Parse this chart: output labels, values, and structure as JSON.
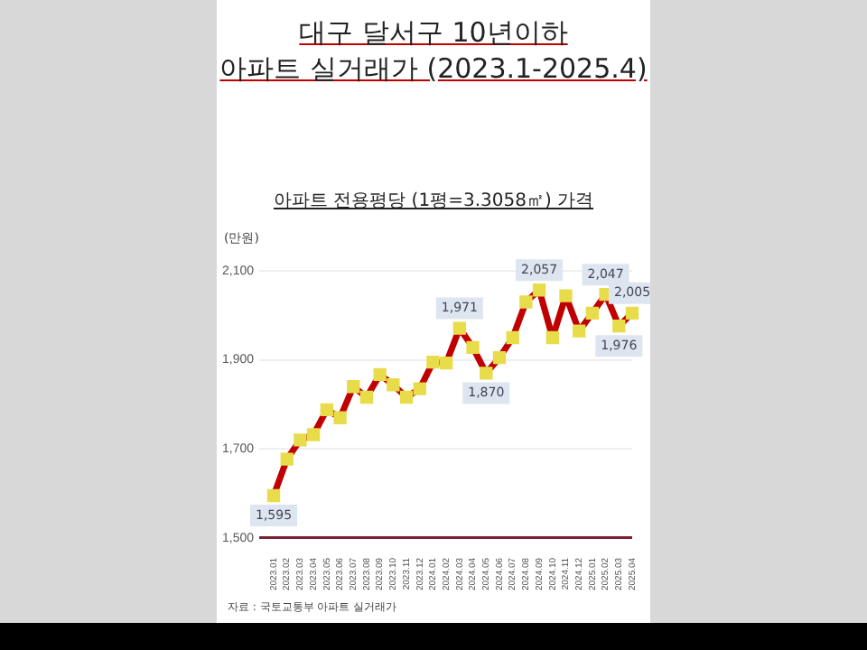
{
  "chart_data": {
    "type": "line",
    "title": "대구 달서구 10년이하\n아파트 실거래가 (2023.1-2025.4)",
    "subtitle": "아파트 전용평당 (1평=3.3058㎡) 가격",
    "ylabel": "(만원)",
    "annotations": [
      "자료 : 국토교통부 아파트 실거래가"
    ],
    "categories": [
      "2023.01",
      "2023.02",
      "2023.03",
      "2023.04",
      "2023.05",
      "2023.06",
      "2023.07",
      "2023.08",
      "2023.09",
      "2023.10",
      "2023.11",
      "2023.12",
      "2024.01",
      "2024.02",
      "2024.03",
      "2024.04",
      "2024.05",
      "2024.06",
      "2024.07",
      "2024.08",
      "2024.09",
      "2024.10",
      "2024.11",
      "2024.12",
      "2025.01",
      "2025.02",
      "2025.03",
      "2025.04"
    ],
    "series": [
      {
        "color": "#c00000",
        "values": [
          1595,
          1677,
          1720,
          1732,
          1788,
          1770,
          1840,
          1816,
          1867,
          1844,
          1816,
          1835,
          1895,
          1893,
          1971,
          1928,
          1870,
          1905,
          1950,
          2030,
          2057,
          1950,
          2044,
          1965,
          2005,
          2047,
          1976,
          2005
        ],
        "colors": [
          "#e8dc4a",
          "#e8dc4a",
          "#e8dc4a",
          "#e8dc4a",
          "#e8dc4a",
          "#e8dc4a",
          "#e8dc4a",
          "#e8dc4a",
          "#e8dc4a",
          "#e8dc4a",
          "#e8dc4a",
          "#e8dc4a",
          "#e8dc4a",
          "#e8dc4a",
          "#e8dc4a",
          "#e8dc4a",
          "#e8dc4a",
          "#e8dc4a",
          "#e8dc4a",
          "#e8dc4a",
          "#e8dc4a",
          "#e8dc4a",
          "#e8dc4a",
          "#e8dc4a",
          "#e8dc4a",
          "#e8dc4a",
          "#e8dc4a",
          "#e8dc4a"
        ],
        "value_labels": [
          "1,595",
          null,
          null,
          null,
          null,
          null,
          null,
          null,
          null,
          null,
          null,
          null,
          null,
          null,
          "1,971",
          null,
          "1,870",
          null,
          null,
          null,
          "2,057",
          null,
          null,
          null,
          null,
          "2,047",
          "1,976",
          "2,005"
        ]
      }
    ],
    "marker": "square",
    "line_style": "solid",
    "ylim": [
      1500,
      2100
    ],
    "yticks": [
      {
        "value": 1500,
        "label": "1,500"
      },
      {
        "value": 1700,
        "label": "1,700"
      },
      {
        "value": 1900,
        "label": "1,900"
      },
      {
        "value": 2100,
        "label": "2,100"
      }
    ],
    "grid": "y",
    "legend": false
  }
}
